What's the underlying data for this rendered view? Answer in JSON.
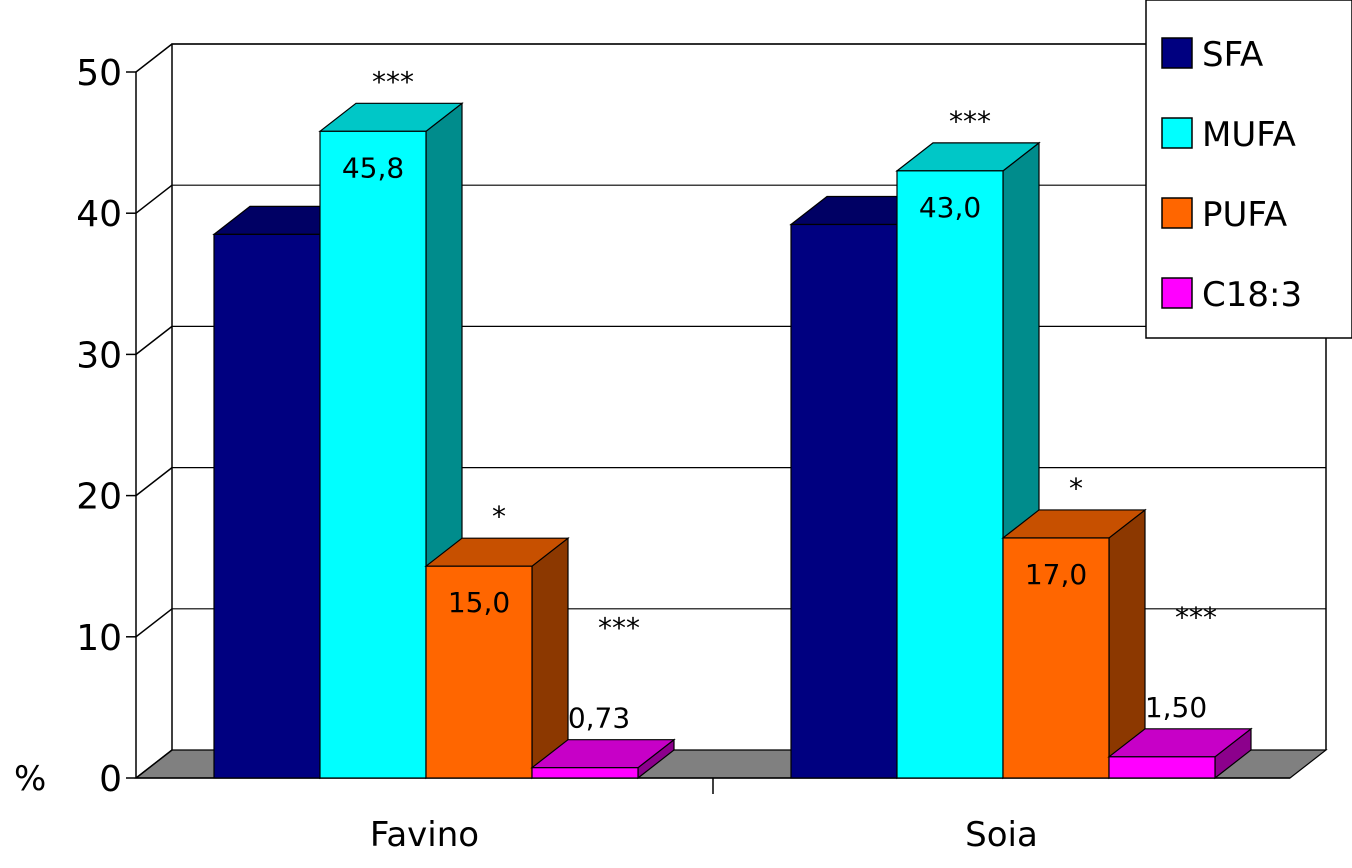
{
  "chart_data": {
    "type": "bar",
    "title": "",
    "xlabel": "",
    "ylabel": "%",
    "ylim": [
      0,
      50
    ],
    "yticks": [
      "0",
      "10",
      "20",
      "30",
      "40",
      "50"
    ],
    "categories": [
      "Favino",
      "Soia"
    ],
    "grid": true,
    "legend_position": "top-right",
    "series": [
      {
        "name": "SFA",
        "color": "#000080",
        "values": [
          38.5,
          39.2
        ],
        "labels": [
          "",
          ""
        ],
        "significance": [
          "",
          ""
        ]
      },
      {
        "name": "MUFA",
        "color": "#00FFFF",
        "values": [
          45.8,
          43.0
        ],
        "labels": [
          "45,8",
          "43,0"
        ],
        "significance": [
          "***",
          "***"
        ]
      },
      {
        "name": "PUFA",
        "color": "#FF6600",
        "values": [
          15.0,
          17.0
        ],
        "labels": [
          "15,0",
          "17,0"
        ],
        "significance": [
          "*",
          "*"
        ]
      },
      {
        "name": "C18:3",
        "color": "#FF00FF",
        "values": [
          0.73,
          1.5
        ],
        "labels": [
          "0,73",
          "1,50"
        ],
        "significance": [
          "***",
          "***"
        ]
      }
    ]
  }
}
